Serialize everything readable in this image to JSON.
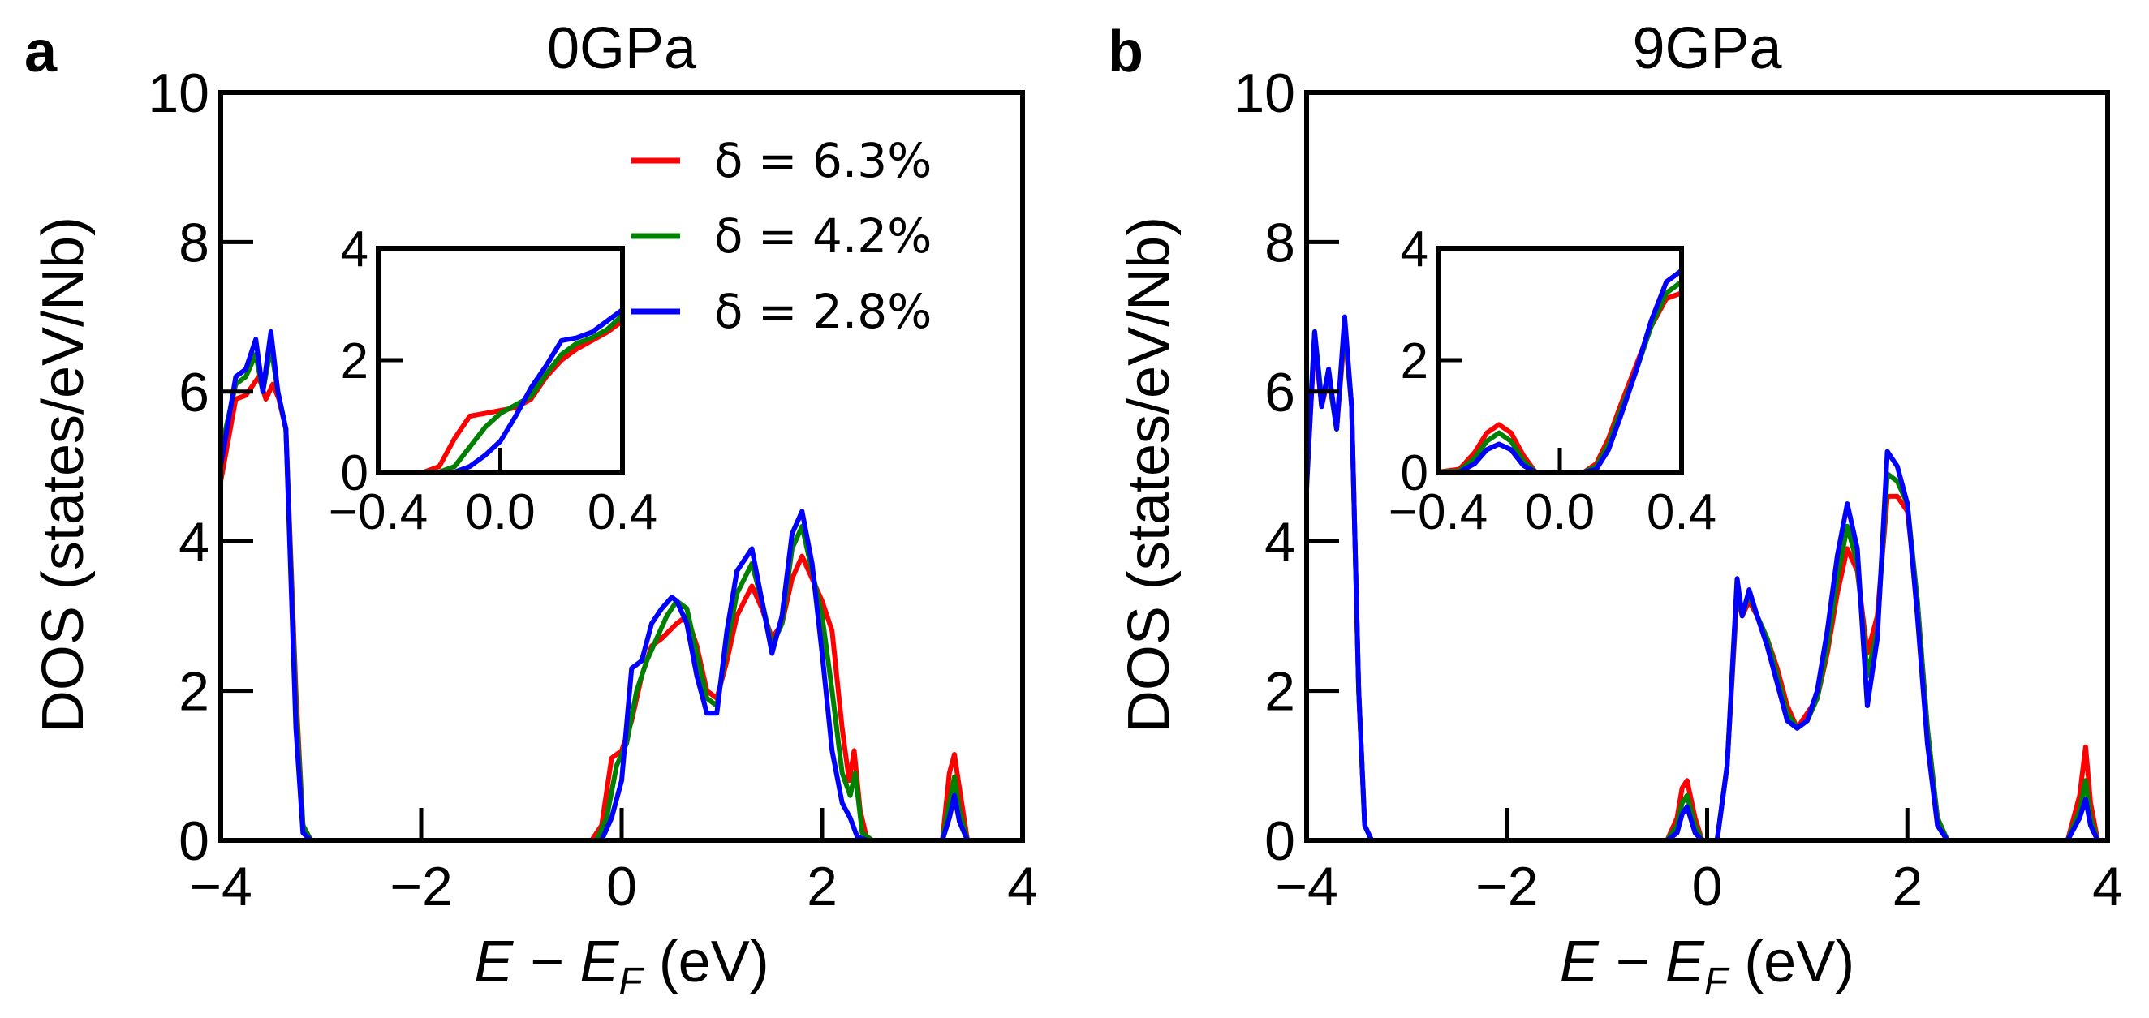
{
  "chart_data": [
    {
      "type": "line",
      "panel_letter": "a",
      "title": "0GPa",
      "xlabel_main": "E − E",
      "xlabel_sub": "F",
      "xlabel_unit": " (eV)",
      "ylabel": "DOS (states/eV/Nb)",
      "xlim": [
        -4,
        4
      ],
      "ylim": [
        0,
        10
      ],
      "xticks": [
        -4,
        -2,
        0,
        2,
        4
      ],
      "xtick_labels": [
        "−4",
        "−2",
        "0",
        "2",
        "4"
      ],
      "yticks": [
        0,
        2,
        4,
        6,
        8,
        10
      ],
      "ytick_labels": [
        "0",
        "2",
        "4",
        "6",
        "8",
        "10"
      ],
      "legend": [
        "δ = 6.3%",
        "δ = 4.2%",
        "δ = 2.8%"
      ],
      "series": [
        {
          "name": "δ = 6.3%",
          "color": "#ff0000",
          "x": [
            -4.0,
            -3.85,
            -3.75,
            -3.62,
            -3.55,
            -3.48,
            -3.42,
            -3.35,
            -3.25,
            -3.18,
            -3.1,
            -2.5,
            -0.3,
            -0.2,
            -0.1,
            0.0,
            0.1,
            0.2,
            0.3,
            0.4,
            0.55,
            0.65,
            0.75,
            0.85,
            0.95,
            1.05,
            1.15,
            1.3,
            1.4,
            1.5,
            1.6,
            1.7,
            1.8,
            1.9,
            2.0,
            2.1,
            2.2,
            2.27,
            2.32,
            2.38,
            2.45,
            2.6,
            3.2,
            3.27,
            3.32,
            3.37,
            3.45,
            4.0
          ],
          "y": [
            4.8,
            5.9,
            5.95,
            6.2,
            5.9,
            6.1,
            5.9,
            5.5,
            2.0,
            0.2,
            0.0,
            0.0,
            0.0,
            0.2,
            1.1,
            1.2,
            1.6,
            2.2,
            2.6,
            2.7,
            2.9,
            3.0,
            2.6,
            2.0,
            1.9,
            2.4,
            3.0,
            3.4,
            3.1,
            2.7,
            2.9,
            3.5,
            3.8,
            3.5,
            3.2,
            2.8,
            1.5,
            0.8,
            1.2,
            0.4,
            0.0,
            0.0,
            0.0,
            0.9,
            1.15,
            0.7,
            0.0,
            0.0
          ]
        },
        {
          "name": "δ = 4.2%",
          "color": "#008000",
          "x": [
            -4.0,
            -3.85,
            -3.75,
            -3.65,
            -3.58,
            -3.5,
            -3.43,
            -3.35,
            -3.25,
            -3.18,
            -3.1,
            -2.5,
            -0.25,
            -0.15,
            -0.05,
            0.05,
            0.15,
            0.25,
            0.35,
            0.45,
            0.55,
            0.65,
            0.75,
            0.85,
            0.95,
            1.05,
            1.15,
            1.3,
            1.4,
            1.5,
            1.6,
            1.7,
            1.8,
            1.9,
            2.0,
            2.1,
            2.2,
            2.28,
            2.33,
            2.4,
            2.5,
            3.2,
            3.27,
            3.32,
            3.37,
            3.45,
            4.0
          ],
          "y": [
            5.2,
            6.1,
            6.2,
            6.5,
            6.0,
            6.6,
            6.0,
            5.5,
            1.8,
            0.2,
            0.0,
            0.0,
            0.0,
            0.3,
            1.0,
            1.3,
            2.0,
            2.4,
            2.7,
            3.0,
            3.2,
            3.1,
            2.5,
            1.9,
            1.8,
            2.6,
            3.3,
            3.7,
            3.2,
            2.6,
            2.9,
            3.9,
            4.2,
            3.6,
            3.0,
            2.0,
            0.9,
            0.6,
            0.9,
            0.1,
            0.0,
            0.0,
            0.5,
            0.85,
            0.4,
            0.0,
            0.0
          ]
        },
        {
          "name": "δ = 2.8%",
          "color": "#0000ff",
          "x": [
            -4.0,
            -3.85,
            -3.75,
            -3.65,
            -3.58,
            -3.5,
            -3.43,
            -3.35,
            -3.25,
            -3.18,
            -3.1,
            -2.5,
            -0.2,
            -0.1,
            0.0,
            0.1,
            0.2,
            0.3,
            0.4,
            0.5,
            0.55,
            0.65,
            0.75,
            0.85,
            0.95,
            1.05,
            1.15,
            1.3,
            1.4,
            1.5,
            1.6,
            1.7,
            1.8,
            1.9,
            2.0,
            2.1,
            2.2,
            2.28,
            2.35,
            2.45,
            3.2,
            3.27,
            3.32,
            3.37,
            3.45,
            4.0
          ],
          "y": [
            5.0,
            6.2,
            6.3,
            6.7,
            6.0,
            6.8,
            6.0,
            5.5,
            1.5,
            0.1,
            0.0,
            0.0,
            0.0,
            0.3,
            0.8,
            2.3,
            2.4,
            2.9,
            3.1,
            3.25,
            3.2,
            2.9,
            2.2,
            1.7,
            1.7,
            2.8,
            3.6,
            3.9,
            3.2,
            2.5,
            3.0,
            4.1,
            4.4,
            3.7,
            2.5,
            1.2,
            0.5,
            0.3,
            0.05,
            0.0,
            0.0,
            0.3,
            0.6,
            0.25,
            0.0,
            0.0
          ]
        }
      ],
      "inset": {
        "xlim": [
          -0.4,
          0.4
        ],
        "ylim": [
          0,
          4
        ],
        "xticks": [
          -0.4,
          0.0,
          0.4
        ],
        "xtick_labels": [
          "−0.4",
          "0.0",
          "0.4"
        ],
        "yticks": [
          0,
          2,
          4
        ],
        "ytick_labels": [
          "0",
          "2",
          "4"
        ],
        "series": [
          {
            "name": "δ = 6.3%",
            "color": "#ff0000",
            "x": [
              -0.4,
              -0.25,
              -0.2,
              -0.15,
              -0.1,
              -0.05,
              0.0,
              0.05,
              0.1,
              0.15,
              0.2,
              0.25,
              0.3,
              0.35,
              0.4
            ],
            "y": [
              0.0,
              0.0,
              0.1,
              0.6,
              1.0,
              1.05,
              1.1,
              1.15,
              1.3,
              1.7,
              2.0,
              2.2,
              2.35,
              2.5,
              2.7
            ]
          },
          {
            "name": "δ = 4.2%",
            "color": "#008000",
            "x": [
              -0.4,
              -0.2,
              -0.15,
              -0.1,
              -0.05,
              0.0,
              0.05,
              0.1,
              0.15,
              0.2,
              0.25,
              0.3,
              0.35,
              0.4
            ],
            "y": [
              0.0,
              0.0,
              0.1,
              0.45,
              0.8,
              1.05,
              1.2,
              1.35,
              1.75,
              2.1,
              2.3,
              2.4,
              2.55,
              2.8
            ]
          },
          {
            "name": "δ = 2.8%",
            "color": "#0000ff",
            "x": [
              -0.4,
              -0.15,
              -0.1,
              -0.05,
              0.0,
              0.05,
              0.1,
              0.15,
              0.2,
              0.25,
              0.3,
              0.35,
              0.4
            ],
            "y": [
              0.0,
              0.0,
              0.1,
              0.3,
              0.55,
              1.0,
              1.5,
              1.9,
              2.35,
              2.4,
              2.5,
              2.7,
              2.9
            ]
          }
        ]
      }
    },
    {
      "type": "line",
      "panel_letter": "b",
      "title": "9GPa",
      "xlabel_main": "E − E",
      "xlabel_sub": "F",
      "xlabel_unit": " (eV)",
      "ylabel": "DOS (states/eV/Nb)",
      "xlim": [
        -4,
        4
      ],
      "ylim": [
        0,
        10
      ],
      "xticks": [
        -4,
        -2,
        0,
        2,
        4
      ],
      "xtick_labels": [
        "−4",
        "−2",
        "0",
        "2",
        "4"
      ],
      "yticks": [
        0,
        2,
        4,
        6,
        8,
        10
      ],
      "ytick_labels": [
        "0",
        "2",
        "4",
        "6",
        "8",
        "10"
      ],
      "series": [
        {
          "name": "δ = 6.3%",
          "color": "#ff0000",
          "x": [
            -4.0,
            -3.92,
            -3.85,
            -3.78,
            -3.7,
            -3.62,
            -3.55,
            -3.48,
            -3.42,
            -3.35,
            -3.27,
            -3.2,
            -2.5,
            -0.4,
            -0.3,
            -0.25,
            -0.2,
            -0.12,
            -0.05,
            0.1,
            0.2,
            0.3,
            0.35,
            0.42,
            0.5,
            0.6,
            0.7,
            0.8,
            0.9,
            1.0,
            1.1,
            1.2,
            1.3,
            1.4,
            1.5,
            1.6,
            1.7,
            1.8,
            1.9,
            2.0,
            2.1,
            2.2,
            2.3,
            2.4,
            3.6,
            3.72,
            3.78,
            3.83,
            3.9,
            4.0
          ],
          "y": [
            4.8,
            6.7,
            5.8,
            6.2,
            5.5,
            6.8,
            5.8,
            2.0,
            0.2,
            0.0,
            0.0,
            0.0,
            0.0,
            0.0,
            0.3,
            0.7,
            0.8,
            0.3,
            0.0,
            0.0,
            1.0,
            3.3,
            3.0,
            3.2,
            3.0,
            2.7,
            2.3,
            1.8,
            1.5,
            1.7,
            1.9,
            2.5,
            3.3,
            3.9,
            3.6,
            2.5,
            3.0,
            4.6,
            4.6,
            4.4,
            3.2,
            1.5,
            0.3,
            0.0,
            0.0,
            0.6,
            1.25,
            0.5,
            0.0,
            0.0
          ]
        },
        {
          "name": "δ = 4.2%",
          "color": "#008000",
          "x": [
            -4.0,
            -3.92,
            -3.85,
            -3.78,
            -3.7,
            -3.62,
            -3.55,
            -3.48,
            -3.42,
            -3.35,
            -3.27,
            -3.2,
            -2.5,
            -0.4,
            -0.3,
            -0.25,
            -0.2,
            -0.12,
            -0.05,
            0.1,
            0.2,
            0.3,
            0.35,
            0.42,
            0.5,
            0.6,
            0.7,
            0.8,
            0.9,
            1.0,
            1.1,
            1.2,
            1.3,
            1.4,
            1.5,
            1.6,
            1.7,
            1.8,
            1.9,
            2.0,
            2.1,
            2.2,
            2.3,
            2.4,
            3.6,
            3.72,
            3.78,
            3.83,
            3.9,
            4.0
          ],
          "y": [
            4.9,
            6.8,
            5.9,
            6.2,
            5.5,
            6.9,
            5.8,
            2.0,
            0.2,
            0.0,
            0.0,
            0.0,
            0.0,
            0.0,
            0.2,
            0.5,
            0.6,
            0.2,
            0.0,
            0.0,
            1.0,
            3.4,
            3.0,
            3.3,
            3.0,
            2.7,
            2.2,
            1.7,
            1.5,
            1.6,
            1.9,
            2.6,
            3.5,
            4.2,
            3.7,
            2.2,
            2.8,
            4.9,
            4.8,
            4.5,
            3.2,
            1.5,
            0.3,
            0.0,
            0.0,
            0.4,
            0.8,
            0.3,
            0.0,
            0.0
          ]
        },
        {
          "name": "δ = 2.8%",
          "color": "#0000ff",
          "x": [
            -4.0,
            -3.92,
            -3.85,
            -3.78,
            -3.7,
            -3.62,
            -3.55,
            -3.48,
            -3.42,
            -3.35,
            -3.27,
            -3.2,
            -2.5,
            -0.4,
            -0.3,
            -0.25,
            -0.2,
            -0.12,
            -0.05,
            0.1,
            0.2,
            0.3,
            0.35,
            0.42,
            0.5,
            0.6,
            0.7,
            0.8,
            0.9,
            1.0,
            1.1,
            1.2,
            1.3,
            1.4,
            1.5,
            1.6,
            1.7,
            1.8,
            1.9,
            2.0,
            2.1,
            2.2,
            2.3,
            2.4,
            3.6,
            3.72,
            3.78,
            3.83,
            3.9,
            4.0
          ],
          "y": [
            4.7,
            6.8,
            5.8,
            6.3,
            5.5,
            7.0,
            5.8,
            2.0,
            0.2,
            0.0,
            0.0,
            0.0,
            0.0,
            0.0,
            0.1,
            0.35,
            0.45,
            0.1,
            0.0,
            0.0,
            1.0,
            3.5,
            3.0,
            3.35,
            3.0,
            2.6,
            2.1,
            1.6,
            1.5,
            1.6,
            2.0,
            2.8,
            3.8,
            4.5,
            3.9,
            1.8,
            2.7,
            5.2,
            5.0,
            4.5,
            3.0,
            1.3,
            0.2,
            0.0,
            0.0,
            0.3,
            0.55,
            0.2,
            0.0,
            0.0
          ]
        }
      ],
      "inset": {
        "xlim": [
          -0.4,
          0.4
        ],
        "ylim": [
          0,
          4
        ],
        "xticks": [
          -0.4,
          0.0,
          0.4
        ],
        "xtick_labels": [
          "−0.4",
          "0.0",
          "0.4"
        ],
        "yticks": [
          0,
          2,
          4
        ],
        "ytick_labels": [
          "0",
          "2",
          "4"
        ],
        "series": [
          {
            "name": "δ = 6.3%",
            "color": "#ff0000",
            "x": [
              -0.4,
              -0.33,
              -0.28,
              -0.24,
              -0.2,
              -0.16,
              -0.12,
              -0.08,
              0.0,
              0.08,
              0.12,
              0.16,
              0.2,
              0.25,
              0.3,
              0.35,
              0.4
            ],
            "y": [
              0.0,
              0.05,
              0.35,
              0.7,
              0.85,
              0.7,
              0.3,
              0.0,
              0.0,
              0.0,
              0.15,
              0.6,
              1.2,
              1.9,
              2.6,
              3.1,
              3.2
            ]
          },
          {
            "name": "δ = 4.2%",
            "color": "#008000",
            "x": [
              -0.4,
              -0.33,
              -0.28,
              -0.24,
              -0.2,
              -0.16,
              -0.12,
              -0.08,
              0.0,
              0.08,
              0.12,
              0.16,
              0.2,
              0.25,
              0.3,
              0.35,
              0.4
            ],
            "y": [
              0.0,
              0.02,
              0.25,
              0.55,
              0.7,
              0.55,
              0.2,
              0.0,
              0.0,
              0.0,
              0.1,
              0.5,
              1.1,
              1.8,
              2.6,
              3.2,
              3.4
            ]
          },
          {
            "name": "δ = 2.8%",
            "color": "#0000ff",
            "x": [
              -0.4,
              -0.33,
              -0.28,
              -0.24,
              -0.2,
              -0.16,
              -0.12,
              -0.08,
              0.0,
              0.08,
              0.12,
              0.16,
              0.2,
              0.25,
              0.3,
              0.35,
              0.4
            ],
            "y": [
              0.0,
              0.0,
              0.15,
              0.4,
              0.5,
              0.4,
              0.12,
              0.0,
              0.0,
              0.0,
              0.05,
              0.4,
              1.0,
              1.8,
              2.7,
              3.4,
              3.6
            ]
          }
        ]
      }
    }
  ]
}
